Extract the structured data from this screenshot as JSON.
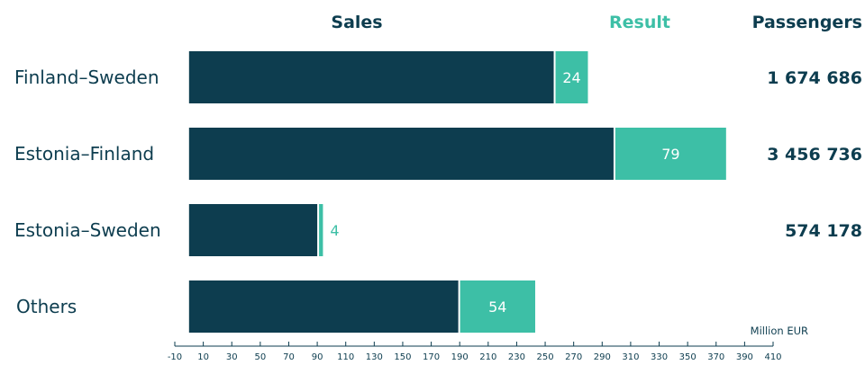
{
  "chart_data": {
    "type": "bar",
    "stacked": true,
    "orientation": "horizontal",
    "headers": {
      "sales": "Sales",
      "result": "Result",
      "passengers": "Passengers"
    },
    "unit_label": "Million EUR",
    "categories": [
      "Finland–Sweden",
      "Estonia–Finland",
      "Estonia–Sweden",
      "Others"
    ],
    "series": [
      {
        "name": "Sales",
        "color": "#0d3d4f",
        "values": [
          256,
          298,
          90,
          189
        ]
      },
      {
        "name": "Result",
        "color": "#3dbfa6",
        "values": [
          24,
          79,
          4,
          54
        ],
        "labels": [
          "24",
          "79",
          "4",
          "54"
        ]
      }
    ],
    "passengers": [
      "1 674 686",
      "3 456 736",
      "574 178",
      ""
    ],
    "xlim": [
      -10,
      410
    ],
    "x_ticks": [
      -10,
      10,
      30,
      50,
      70,
      90,
      110,
      130,
      150,
      170,
      190,
      210,
      230,
      250,
      270,
      290,
      310,
      330,
      350,
      370,
      390,
      410
    ],
    "grid": false,
    "colors": {
      "sales": "#0d3d4f",
      "result": "#3dbfa6",
      "text": "#0d3d4f"
    }
  }
}
